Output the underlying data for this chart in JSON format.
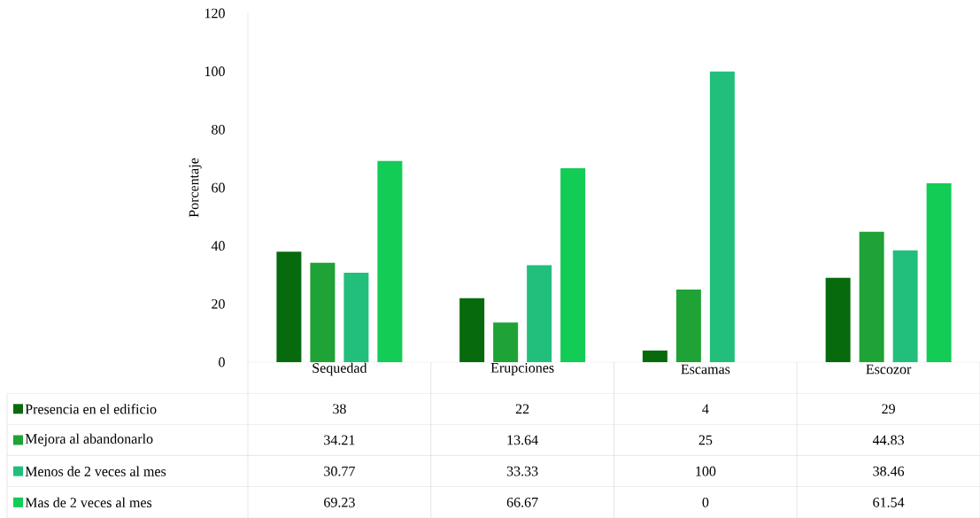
{
  "chart_data": {
    "type": "bar",
    "ylabel": "Porcentaje",
    "categories": [
      "Sequedad",
      "Erupciones",
      "Escamas",
      "Escozor"
    ],
    "series": [
      {
        "name": "Presencia en el edificio",
        "color": "#076b0e",
        "values": [
          38,
          22,
          4,
          29
        ]
      },
      {
        "name": "Mejora al abandonarlo",
        "color": "#1fa236",
        "values": [
          34.21,
          13.64,
          25,
          44.83
        ]
      },
      {
        "name": "Menos de 2 veces al mes",
        "color": "#21bf7b",
        "values": [
          30.77,
          33.33,
          100,
          38.46
        ]
      },
      {
        "name": "Mas de 2 veces al mes",
        "color": "#12cc55",
        "values": [
          69.23,
          66.67,
          0,
          61.54
        ]
      }
    ],
    "ylim": [
      0,
      120
    ],
    "yticks": [
      0,
      20,
      40,
      60,
      80,
      100,
      120
    ],
    "grid": false,
    "legend": "bottom",
    "data_labels": true
  }
}
